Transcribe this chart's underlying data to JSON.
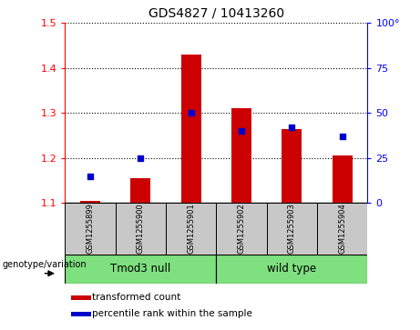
{
  "title": "GDS4827 / 10413260",
  "samples": [
    "GSM1255899",
    "GSM1255900",
    "GSM1255901",
    "GSM1255902",
    "GSM1255903",
    "GSM1255904"
  ],
  "transformed_counts": [
    1.105,
    1.155,
    1.43,
    1.31,
    1.265,
    1.205
  ],
  "percentile_ranks": [
    15,
    25,
    50,
    40,
    42,
    37
  ],
  "bar_bottom": 1.1,
  "ylim_left": [
    1.1,
    1.5
  ],
  "ylim_right": [
    0,
    100
  ],
  "yticks_left": [
    1.1,
    1.2,
    1.3,
    1.4,
    1.5
  ],
  "yticks_right": [
    0,
    25,
    50,
    75,
    100
  ],
  "groups": [
    {
      "label": "Tmod3 null",
      "start": 0,
      "end": 3,
      "color": "#7EE07E"
    },
    {
      "label": "wild type",
      "start": 3,
      "end": 6,
      "color": "#7EE07E"
    }
  ],
  "group_label_prefix": "genotype/variation",
  "bar_color": "#CC0000",
  "dot_color": "#0000CC",
  "plot_bg_color": "#FFFFFF",
  "legend_items": [
    "transformed count",
    "percentile rank within the sample"
  ],
  "sample_box_color": "#C8C8C8",
  "bar_width": 0.4,
  "dot_size": 25
}
